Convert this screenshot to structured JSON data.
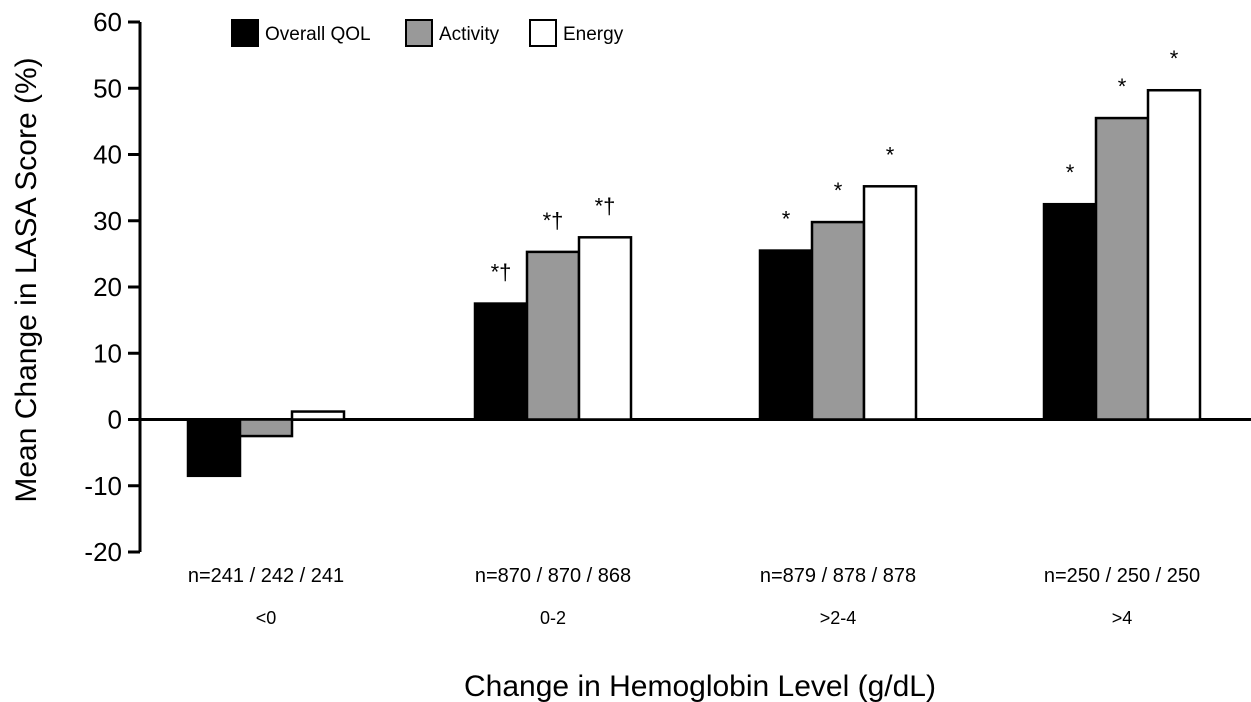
{
  "chart_data": {
    "type": "bar",
    "title": "",
    "xlabel": "Change in Hemoglobin Level (g/dL)",
    "ylabel": "Mean Change in LASA Score (%)",
    "ylim": [
      -20,
      60
    ],
    "yticks": [
      -20,
      -10,
      0,
      10,
      20,
      30,
      40,
      50,
      60
    ],
    "categories": [
      "<0",
      "0-2",
      ">2-4",
      ">4"
    ],
    "n_labels": [
      "n=241 / 242 / 241",
      "n=870 / 870 / 868",
      "n=879 / 878 / 878",
      "n=250 / 250 / 250"
    ],
    "legend_position": "top-left",
    "grid": false,
    "series": [
      {
        "name": "Overall QOL",
        "color": "#000000",
        "values": [
          -8.5,
          17.5,
          25.5,
          32.5
        ],
        "annotations": [
          "",
          "*†",
          "*",
          "*"
        ]
      },
      {
        "name": "Activity",
        "color": "#999999",
        "values": [
          -2.5,
          25.3,
          29.8,
          45.5
        ],
        "annotations": [
          "",
          "*†",
          "*",
          "*"
        ]
      },
      {
        "name": "Energy",
        "color": "#ffffff",
        "values": [
          1.2,
          27.5,
          35.2,
          49.7
        ],
        "annotations": [
          "",
          "*†",
          "*",
          "*"
        ]
      }
    ]
  }
}
